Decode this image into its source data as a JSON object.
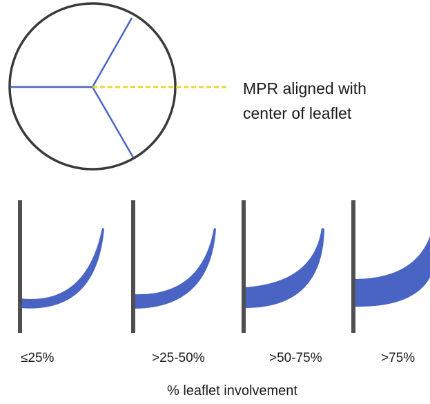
{
  "colors": {
    "leaflet_fill": "#4a64c4",
    "commissure_line": "#4a64c4",
    "mpr_line": "#e8d833",
    "annulus_circle": "#3a3a3a",
    "wall": "#4f4f4f"
  },
  "mpr_label": {
    "line1": "MPR aligned with",
    "line2": "center of leaflet"
  },
  "panels": [
    {
      "label": "≤25%",
      "involvement": 0.25
    },
    {
      "label": ">25-50%",
      "involvement": 0.5
    },
    {
      "label": ">50-75%",
      "involvement": 0.75
    },
    {
      "label": ">75%",
      "involvement": 1.0
    }
  ],
  "axis_title": "% leaflet involvement"
}
